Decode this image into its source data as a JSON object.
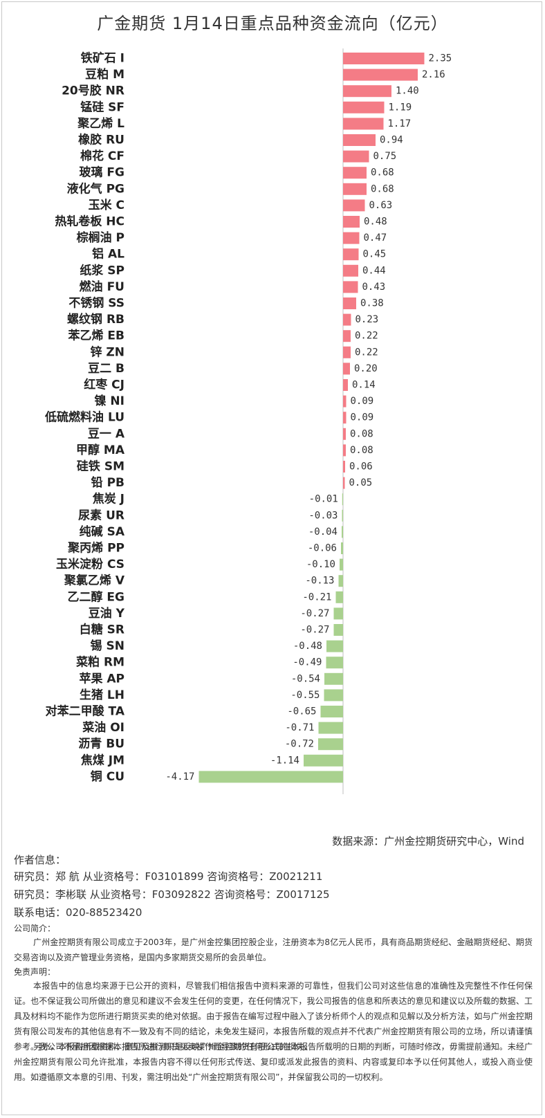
{
  "title": "广金期货 1月14日重点品种资金流向（亿元）",
  "source": "数据来源：广州金控期货研究中心，Wind",
  "author": {
    "heading": "作者信息：",
    "researcher1": "研究员：郑 航   从业资格号：F03101899  咨询资格号：Z0021211",
    "researcher2": "研究员：李彬联  从业资格号：F03092822  咨询资格号：Z0017125",
    "phone": "联系电话：020-88523420"
  },
  "company": {
    "heading": "公司简介：",
    "text": "广州金控期货有限公司成立于2003年，是广州金控集团控股企业，注册资本为8亿元人民币，具有商品期货经纪、金融期货经纪、期货交易咨询以及资产管理业务资格，是国内多家期货交易所的会员单位。"
  },
  "disclaimer": {
    "heading": "免责声明：",
    "text1": "本报告中的信息均来源于已公开的资料，尽管我们相信报告中资料来源的可靠性，但我们公司对这些信息的准确性及完整性不作任何保证。也不保证我公司所做出的意见和建议不会发生任何的变更，在任何情况下，我公司报告的信息和所表达的意见和建议以及所载的数据、工具及材料均不能作为您所进行期货买卖的绝对依据。由于报告在编写过程中融入了该分析师个人的观点和见解以及分析方法，如与广州金控期货有限公司发布的其他信息有不一致及有不同的结论，未免发生疑问，本报告所载的观点并不代表广州金控期货有限公司的立场，所以请谨慎参考。我公司不承担因根据本报告所进行期货买卖操作而导致的任何形式的损失。",
    "text2": "另外，本报告所载资料、意见及推测只是反映广州金控期货有限公司在本报告所载明的日期的判断，可随时修改，毋需提前通知。未经广州金控期货有限公司允许批准，本报告内容不得以任何形式传送、复印或派发此报告的资料、内容或复印本予以任何其他人，或投入商业使用。如遵循原文本意的引用、刊发，需注明出处“广州金控期货有限公司”，并保留我公司的一切权利。"
  },
  "colors": {
    "positive": "#f47c86",
    "negative": "#a9d18e",
    "axis": "#bfbfbf"
  },
  "chart_data": {
    "type": "bar",
    "orientation": "horizontal",
    "title": "广金期货 1月14日重点品种资金流向（亿元）",
    "categories": [
      "铁矿石 I",
      "豆粕 M",
      "20号胶 NR",
      "锰硅 SF",
      "聚乙烯 L",
      "橡胶 RU",
      "棉花 CF",
      "玻璃 FG",
      "液化气 PG",
      "玉米 C",
      "热轧卷板 HC",
      "棕榈油 P",
      "铝 AL",
      "纸浆 SP",
      "燃油 FU",
      "不锈钢 SS",
      "螺纹钢 RB",
      "苯乙烯 EB",
      "锌 ZN",
      "豆二 B",
      "红枣 CJ",
      "镍 NI",
      "低硫燃料油 LU",
      "豆一 A",
      "甲醇 MA",
      "硅铁 SM",
      "铅 PB",
      "焦炭 J",
      "尿素 UR",
      "纯碱  SA",
      "聚丙烯 PP",
      "玉米淀粉 CS",
      "聚氯乙烯 V",
      "乙二醇 EG",
      "豆油 Y",
      "白糖 SR",
      "锡 SN",
      "菜粕 RM",
      "苹果 AP",
      "生猪 LH",
      "对苯二甲酸 TA",
      "菜油 OI",
      "沥青 BU",
      "焦煤 JM",
      "铜 CU"
    ],
    "values": [
      2.35,
      2.16,
      1.4,
      1.19,
      1.17,
      0.94,
      0.75,
      0.68,
      0.68,
      0.63,
      0.48,
      0.47,
      0.45,
      0.44,
      0.43,
      0.38,
      0.23,
      0.22,
      0.22,
      0.2,
      0.14,
      0.09,
      0.09,
      0.08,
      0.08,
      0.06,
      0.05,
      -0.01,
      -0.03,
      -0.04,
      -0.06,
      -0.1,
      -0.13,
      -0.21,
      -0.27,
      -0.27,
      -0.48,
      -0.49,
      -0.54,
      -0.55,
      -0.65,
      -0.71,
      -0.72,
      -1.14,
      -4.17
    ],
    "labels": [
      "2.35",
      "2.16",
      "1.40",
      "1.19",
      "1.17",
      "0.94",
      "0.75",
      "0.68",
      "0.68",
      "0.63",
      "0.48",
      "0.47",
      "0.45",
      "0.44",
      "0.43",
      "0.38",
      "0.23",
      "0.22",
      "0.22",
      "0.20",
      "0.14",
      "0.09",
      "0.09",
      "0.08",
      "0.08",
      "0.06",
      "0.05",
      "-0.01",
      "-0.03",
      "-0.04",
      "-0.06",
      "-0.10",
      "-0.13",
      "-0.21",
      "-0.27",
      "-0.27",
      "-0.48",
      "-0.49",
      "-0.54",
      "-0.55",
      "-0.65",
      "-0.71",
      "-0.72",
      "-1.14",
      "-4.17"
    ],
    "xlim": [
      -4.17,
      2.35
    ],
    "legend": "none",
    "grid": false
  }
}
